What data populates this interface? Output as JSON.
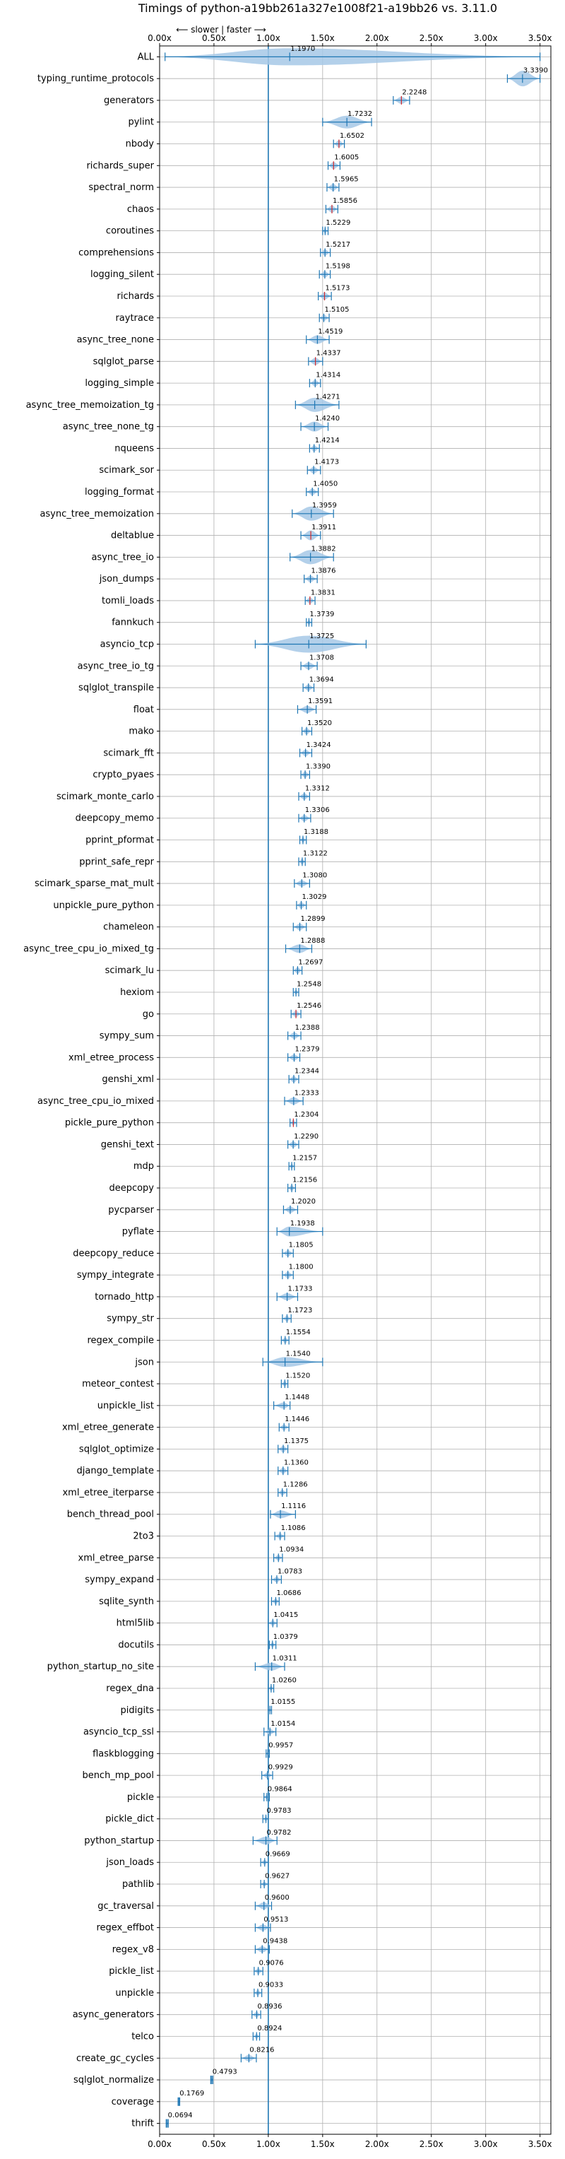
{
  "chart_data": {
    "type": "violin",
    "title": "Timings of python-a19bb261a327e1008f21-a19bb26 vs. 3.11.0",
    "annotation": "⟵ slower | faster ⟶",
    "xlim": [
      0.0,
      3.6
    ],
    "xticks": [
      0.0,
      0.5,
      1.0,
      1.5,
      2.0,
      2.5,
      3.0,
      3.5
    ],
    "xtick_labels": [
      "0.00x",
      "0.50x",
      "1.00x",
      "1.50x",
      "2.00x",
      "2.50x",
      "3.00x",
      "3.50x"
    ],
    "reference_line": 1.0,
    "grid": true,
    "colors": {
      "violin": "#a6c8e6",
      "line": "#1f77b4",
      "median_highlight": "#d62728"
    },
    "benchmarks": [
      {
        "name": "ALL",
        "value": 1.197,
        "label": "1.1970",
        "min": 0.05,
        "max": 3.5,
        "w": 24
      },
      {
        "name": "typing_runtime_protocols",
        "value": 3.339,
        "label": "3.3390",
        "min": 3.2,
        "max": 3.5,
        "w": 22
      },
      {
        "name": "generators",
        "value": 2.2248,
        "label": "2.2248",
        "min": 2.15,
        "max": 2.3,
        "w": 10,
        "red": true
      },
      {
        "name": "pylint",
        "value": 1.7232,
        "label": "1.7232",
        "min": 1.5,
        "max": 1.95,
        "w": 18
      },
      {
        "name": "nbody",
        "value": 1.6502,
        "label": "1.6502",
        "min": 1.6,
        "max": 1.7,
        "w": 10,
        "red": true
      },
      {
        "name": "richards_super",
        "value": 1.6005,
        "label": "1.6005",
        "min": 1.55,
        "max": 1.66,
        "w": 10,
        "red": true
      },
      {
        "name": "spectral_norm",
        "value": 1.5965,
        "label": "1.5965",
        "min": 1.54,
        "max": 1.65,
        "w": 10
      },
      {
        "name": "chaos",
        "value": 1.5856,
        "label": "1.5856",
        "min": 1.53,
        "max": 1.64,
        "w": 10,
        "red": true
      },
      {
        "name": "coroutines",
        "value": 1.5229,
        "label": "1.5229",
        "min": 1.5,
        "max": 1.55,
        "w": 8
      },
      {
        "name": "comprehensions",
        "value": 1.5217,
        "label": "1.5217",
        "min": 1.48,
        "max": 1.57,
        "w": 9
      },
      {
        "name": "logging_silent",
        "value": 1.5198,
        "label": "1.5198",
        "min": 1.47,
        "max": 1.57,
        "w": 9
      },
      {
        "name": "richards",
        "value": 1.5173,
        "label": "1.5173",
        "min": 1.46,
        "max": 1.58,
        "w": 10,
        "red": true
      },
      {
        "name": "raytrace",
        "value": 1.5105,
        "label": "1.5105",
        "min": 1.47,
        "max": 1.56,
        "w": 9
      },
      {
        "name": "async_tree_none",
        "value": 1.4519,
        "label": "1.4519",
        "min": 1.35,
        "max": 1.56,
        "w": 12
      },
      {
        "name": "sqlglot_parse",
        "value": 1.4337,
        "label": "1.4337",
        "min": 1.37,
        "max": 1.5,
        "w": 10,
        "red": true
      },
      {
        "name": "logging_simple",
        "value": 1.4314,
        "label": "1.4314",
        "min": 1.38,
        "max": 1.48,
        "w": 9
      },
      {
        "name": "async_tree_memoization_tg",
        "value": 1.4271,
        "label": "1.4271",
        "min": 1.25,
        "max": 1.65,
        "w": 20
      },
      {
        "name": "async_tree_none_tg",
        "value": 1.424,
        "label": "1.4240",
        "min": 1.3,
        "max": 1.55,
        "w": 14
      },
      {
        "name": "nqueens",
        "value": 1.4214,
        "label": "1.4214",
        "min": 1.38,
        "max": 1.47,
        "w": 9
      },
      {
        "name": "scimark_sor",
        "value": 1.4173,
        "label": "1.4173",
        "min": 1.36,
        "max": 1.48,
        "w": 9
      },
      {
        "name": "logging_format",
        "value": 1.405,
        "label": "1.4050",
        "min": 1.35,
        "max": 1.46,
        "w": 9
      },
      {
        "name": "async_tree_memoization",
        "value": 1.3959,
        "label": "1.3959",
        "min": 1.22,
        "max": 1.6,
        "w": 20
      },
      {
        "name": "deltablue",
        "value": 1.3911,
        "label": "1.3911",
        "min": 1.3,
        "max": 1.48,
        "w": 14,
        "red": true
      },
      {
        "name": "async_tree_io",
        "value": 1.3882,
        "label": "1.3882",
        "min": 1.2,
        "max": 1.6,
        "w": 20
      },
      {
        "name": "json_dumps",
        "value": 1.3876,
        "label": "1.3876",
        "min": 1.33,
        "max": 1.45,
        "w": 9
      },
      {
        "name": "tomli_loads",
        "value": 1.3831,
        "label": "1.3831",
        "min": 1.34,
        "max": 1.43,
        "w": 9,
        "red": true
      },
      {
        "name": "fannkuch",
        "value": 1.3739,
        "label": "1.3739",
        "min": 1.35,
        "max": 1.4,
        "w": 7
      },
      {
        "name": "asyncio_tcp",
        "value": 1.3725,
        "label": "1.3725",
        "min": 0.88,
        "max": 1.9,
        "w": 24
      },
      {
        "name": "async_tree_io_tg",
        "value": 1.3708,
        "label": "1.3708",
        "min": 1.3,
        "max": 1.45,
        "w": 10
      },
      {
        "name": "sqlglot_transpile",
        "value": 1.3694,
        "label": "1.3694",
        "min": 1.32,
        "max": 1.42,
        "w": 9
      },
      {
        "name": "float",
        "value": 1.3591,
        "label": "1.3591",
        "min": 1.27,
        "max": 1.44,
        "w": 10
      },
      {
        "name": "mako",
        "value": 1.352,
        "label": "1.3520",
        "min": 1.31,
        "max": 1.4,
        "w": 9
      },
      {
        "name": "scimark_fft",
        "value": 1.3424,
        "label": "1.3424",
        "min": 1.29,
        "max": 1.4,
        "w": 9
      },
      {
        "name": "crypto_pyaes",
        "value": 1.339,
        "label": "1.3390",
        "min": 1.3,
        "max": 1.38,
        "w": 9
      },
      {
        "name": "scimark_monte_carlo",
        "value": 1.3312,
        "label": "1.3312",
        "min": 1.28,
        "max": 1.38,
        "w": 9
      },
      {
        "name": "deepcopy_memo",
        "value": 1.3306,
        "label": "1.3306",
        "min": 1.28,
        "max": 1.39,
        "w": 9
      },
      {
        "name": "pprint_pformat",
        "value": 1.3188,
        "label": "1.3188",
        "min": 1.29,
        "max": 1.35,
        "w": 8
      },
      {
        "name": "pprint_safe_repr",
        "value": 1.3122,
        "label": "1.3122",
        "min": 1.28,
        "max": 1.34,
        "w": 8
      },
      {
        "name": "scimark_sparse_mat_mult",
        "value": 1.308,
        "label": "1.3080",
        "min": 1.24,
        "max": 1.38,
        "w": 9
      },
      {
        "name": "unpickle_pure_python",
        "value": 1.3029,
        "label": "1.3029",
        "min": 1.26,
        "max": 1.35,
        "w": 9
      },
      {
        "name": "chameleon",
        "value": 1.2899,
        "label": "1.2899",
        "min": 1.23,
        "max": 1.35,
        "w": 9
      },
      {
        "name": "async_tree_cpu_io_mixed_tg",
        "value": 1.2888,
        "label": "1.2888",
        "min": 1.16,
        "max": 1.4,
        "w": 12
      },
      {
        "name": "scimark_lu",
        "value": 1.2697,
        "label": "1.2697",
        "min": 1.23,
        "max": 1.31,
        "w": 9
      },
      {
        "name": "hexiom",
        "value": 1.2548,
        "label": "1.2548",
        "min": 1.23,
        "max": 1.28,
        "w": 7
      },
      {
        "name": "go",
        "value": 1.2546,
        "label": "1.2546",
        "min": 1.21,
        "max": 1.3,
        "w": 9,
        "red": true
      },
      {
        "name": "sympy_sum",
        "value": 1.2388,
        "label": "1.2388",
        "min": 1.18,
        "max": 1.3,
        "w": 9
      },
      {
        "name": "xml_etree_process",
        "value": 1.2379,
        "label": "1.2379",
        "min": 1.18,
        "max": 1.29,
        "w": 9
      },
      {
        "name": "genshi_xml",
        "value": 1.2344,
        "label": "1.2344",
        "min": 1.19,
        "max": 1.28,
        "w": 9
      },
      {
        "name": "async_tree_cpu_io_mixed",
        "value": 1.2333,
        "label": "1.2333",
        "min": 1.15,
        "max": 1.32,
        "w": 10
      },
      {
        "name": "pickle_pure_python",
        "value": 1.2304,
        "label": "1.2304",
        "min": 1.2,
        "max": 1.26,
        "w": 8,
        "red": true
      },
      {
        "name": "genshi_text",
        "value": 1.229,
        "label": "1.2290",
        "min": 1.18,
        "max": 1.28,
        "w": 9
      },
      {
        "name": "mdp",
        "value": 1.2157,
        "label": "1.2157",
        "min": 1.19,
        "max": 1.24,
        "w": 7
      },
      {
        "name": "deepcopy",
        "value": 1.2156,
        "label": "1.2156",
        "min": 1.18,
        "max": 1.25,
        "w": 8
      },
      {
        "name": "pycparser",
        "value": 1.202,
        "label": "1.2020",
        "min": 1.14,
        "max": 1.27,
        "w": 9
      },
      {
        "name": "pyflate",
        "value": 1.1938,
        "label": "1.1938",
        "min": 1.08,
        "max": 1.5,
        "w": 14
      },
      {
        "name": "deepcopy_reduce",
        "value": 1.1805,
        "label": "1.1805",
        "min": 1.13,
        "max": 1.23,
        "w": 9
      },
      {
        "name": "sympy_integrate",
        "value": 1.18,
        "label": "1.1800",
        "min": 1.13,
        "max": 1.23,
        "w": 9
      },
      {
        "name": "tornado_http",
        "value": 1.1733,
        "label": "1.1733",
        "min": 1.08,
        "max": 1.27,
        "w": 10
      },
      {
        "name": "sympy_str",
        "value": 1.1723,
        "label": "1.1723",
        "min": 1.13,
        "max": 1.21,
        "w": 8
      },
      {
        "name": "regex_compile",
        "value": 1.1554,
        "label": "1.1554",
        "min": 1.12,
        "max": 1.19,
        "w": 8
      },
      {
        "name": "json",
        "value": 1.154,
        "label": "1.1540",
        "min": 0.95,
        "max": 1.5,
        "w": 14
      },
      {
        "name": "meteor_contest",
        "value": 1.152,
        "label": "1.1520",
        "min": 1.12,
        "max": 1.18,
        "w": 8
      },
      {
        "name": "unpickle_list",
        "value": 1.1448,
        "label": "1.1448",
        "min": 1.05,
        "max": 1.2,
        "w": 9
      },
      {
        "name": "xml_etree_generate",
        "value": 1.1446,
        "label": "1.1446",
        "min": 1.1,
        "max": 1.19,
        "w": 8
      },
      {
        "name": "sqlglot_optimize",
        "value": 1.1375,
        "label": "1.1375",
        "min": 1.09,
        "max": 1.18,
        "w": 9
      },
      {
        "name": "django_template",
        "value": 1.136,
        "label": "1.1360",
        "min": 1.09,
        "max": 1.18,
        "w": 9
      },
      {
        "name": "xml_etree_iterparse",
        "value": 1.1286,
        "label": "1.1286",
        "min": 1.09,
        "max": 1.17,
        "w": 8
      },
      {
        "name": "bench_thread_pool",
        "value": 1.1116,
        "label": "1.1116",
        "min": 1.02,
        "max": 1.25,
        "w": 11
      },
      {
        "name": "2to3",
        "value": 1.1086,
        "label": "1.1086",
        "min": 1.06,
        "max": 1.15,
        "w": 8
      },
      {
        "name": "xml_etree_parse",
        "value": 1.0934,
        "label": "1.0934",
        "min": 1.05,
        "max": 1.13,
        "w": 8
      },
      {
        "name": "sympy_expand",
        "value": 1.0783,
        "label": "1.0783",
        "min": 1.03,
        "max": 1.12,
        "w": 8
      },
      {
        "name": "sqlite_synth",
        "value": 1.0686,
        "label": "1.0686",
        "min": 1.03,
        "max": 1.1,
        "w": 8
      },
      {
        "name": "html5lib",
        "value": 1.0415,
        "label": "1.0415",
        "min": 1.0,
        "max": 1.08,
        "w": 8
      },
      {
        "name": "docutils",
        "value": 1.0379,
        "label": "1.0379",
        "min": 1.01,
        "max": 1.07,
        "w": 7
      },
      {
        "name": "python_startup_no_site",
        "value": 1.0311,
        "label": "1.0311",
        "min": 0.88,
        "max": 1.15,
        "w": 11
      },
      {
        "name": "regex_dna",
        "value": 1.026,
        "label": "1.0260",
        "min": 1.0,
        "max": 1.05,
        "w": 7
      },
      {
        "name": "pidigits",
        "value": 1.0155,
        "label": "1.0155",
        "min": 1.0,
        "max": 1.03,
        "w": 6
      },
      {
        "name": "asyncio_tcp_ssl",
        "value": 1.0154,
        "label": "1.0154",
        "min": 0.96,
        "max": 1.07,
        "w": 8
      },
      {
        "name": "flaskblogging",
        "value": 0.9957,
        "label": "0.9957",
        "min": 0.98,
        "max": 1.01,
        "w": 6
      },
      {
        "name": "bench_mp_pool",
        "value": 0.9929,
        "label": "0.9929",
        "min": 0.94,
        "max": 1.04,
        "w": 8
      },
      {
        "name": "pickle",
        "value": 0.9864,
        "label": "0.9864",
        "min": 0.96,
        "max": 1.01,
        "w": 7
      },
      {
        "name": "pickle_dict",
        "value": 0.9783,
        "label": "0.9783",
        "min": 0.95,
        "max": 1.0,
        "w": 7
      },
      {
        "name": "python_startup",
        "value": 0.9782,
        "label": "0.9782",
        "min": 0.86,
        "max": 1.08,
        "w": 11
      },
      {
        "name": "json_loads",
        "value": 0.9669,
        "label": "0.9669",
        "min": 0.93,
        "max": 1.0,
        "w": 7
      },
      {
        "name": "pathlib",
        "value": 0.9627,
        "label": "0.9627",
        "min": 0.93,
        "max": 1.0,
        "w": 7
      },
      {
        "name": "gc_traversal",
        "value": 0.96,
        "label": "0.9600",
        "min": 0.88,
        "max": 1.03,
        "w": 10
      },
      {
        "name": "regex_effbot",
        "value": 0.9513,
        "label": "0.9513",
        "min": 0.88,
        "max": 1.02,
        "w": 9
      },
      {
        "name": "regex_v8",
        "value": 0.9438,
        "label": "0.9438",
        "min": 0.88,
        "max": 1.01,
        "w": 9
      },
      {
        "name": "pickle_list",
        "value": 0.9076,
        "label": "0.9076",
        "min": 0.87,
        "max": 0.95,
        "w": 8
      },
      {
        "name": "unpickle",
        "value": 0.9033,
        "label": "0.9033",
        "min": 0.87,
        "max": 0.94,
        "w": 8
      },
      {
        "name": "async_generators",
        "value": 0.8936,
        "label": "0.8936",
        "min": 0.85,
        "max": 0.93,
        "w": 8
      },
      {
        "name": "telco",
        "value": 0.8924,
        "label": "0.8924",
        "min": 0.86,
        "max": 0.92,
        "w": 7
      },
      {
        "name": "create_gc_cycles",
        "value": 0.8216,
        "label": "0.8216",
        "min": 0.75,
        "max": 0.89,
        "w": 9
      },
      {
        "name": "sqlglot_normalize",
        "value": 0.4793,
        "label": "0.4793",
        "min": 0.47,
        "max": 0.49,
        "w": 6
      },
      {
        "name": "coverage",
        "value": 0.1769,
        "label": "0.1769",
        "min": 0.17,
        "max": 0.185,
        "w": 5
      },
      {
        "name": "thrift",
        "value": 0.0694,
        "label": "0.0694",
        "min": 0.06,
        "max": 0.08,
        "w": 5
      }
    ]
  }
}
